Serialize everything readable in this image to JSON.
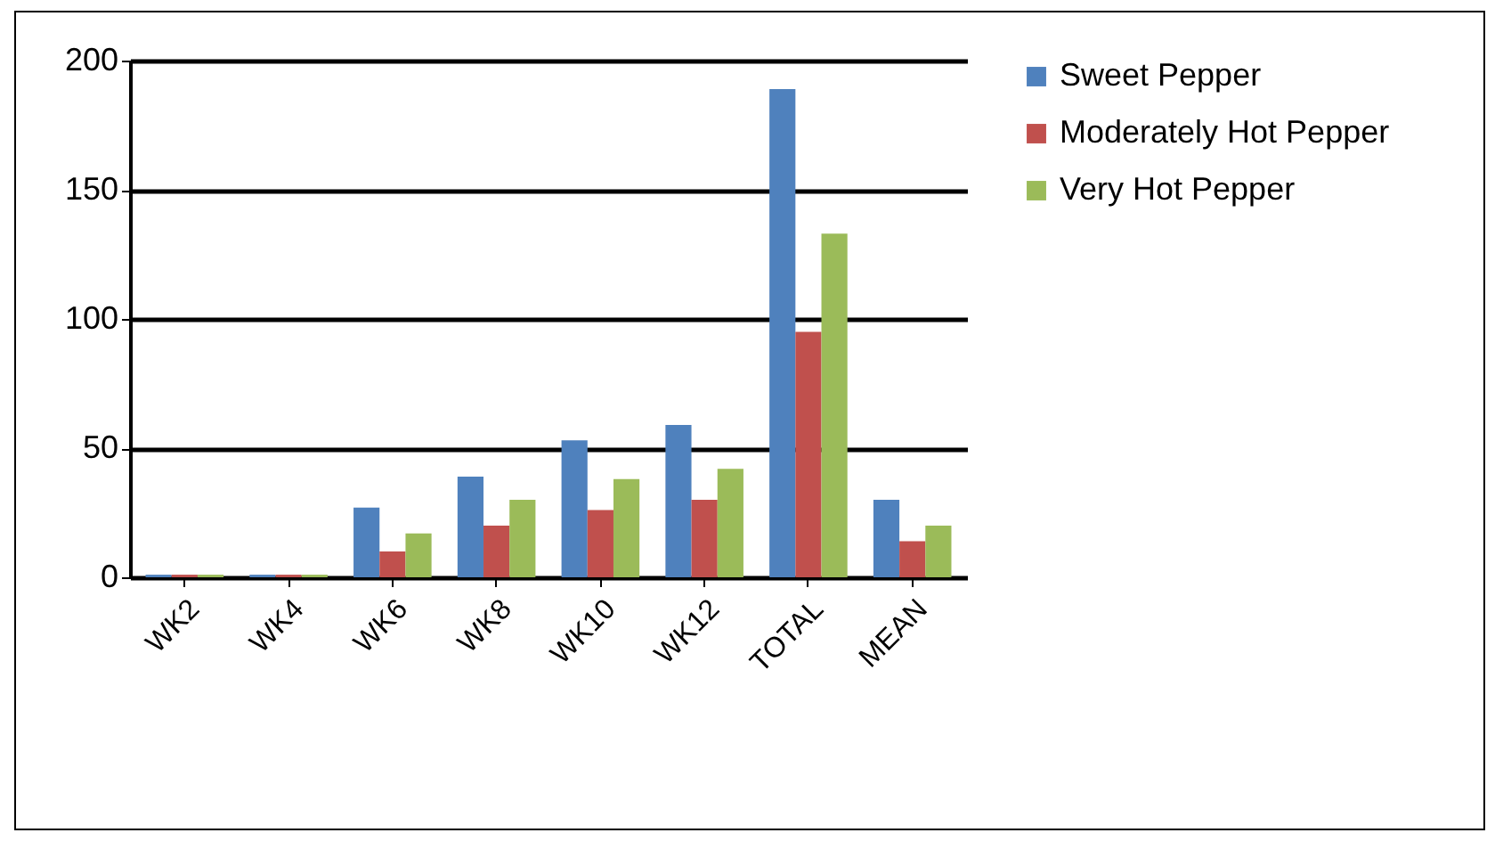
{
  "chart_data": {
    "type": "bar",
    "categories": [
      "WK2",
      "WK4",
      "WK6",
      "WK8",
      "WK10",
      "WK12",
      "TOTAL",
      "MEAN"
    ],
    "series": [
      {
        "name": "Sweet Pepper",
        "color": "#4f81bd",
        "values": [
          1,
          1,
          27,
          39,
          53,
          59,
          189,
          30
        ]
      },
      {
        "name": "Moderately Hot Pepper",
        "color": "#c0504d",
        "values": [
          1,
          1,
          10,
          20,
          26,
          30,
          95,
          14
        ]
      },
      {
        "name": "Very Hot Pepper",
        "color": "#9bbb59",
        "values": [
          1,
          1,
          17,
          30,
          38,
          42,
          133,
          20
        ]
      }
    ],
    "ylim": [
      0,
      200
    ],
    "yticks": [
      0,
      50,
      100,
      150,
      200
    ],
    "grid": "y",
    "legend": "right"
  }
}
